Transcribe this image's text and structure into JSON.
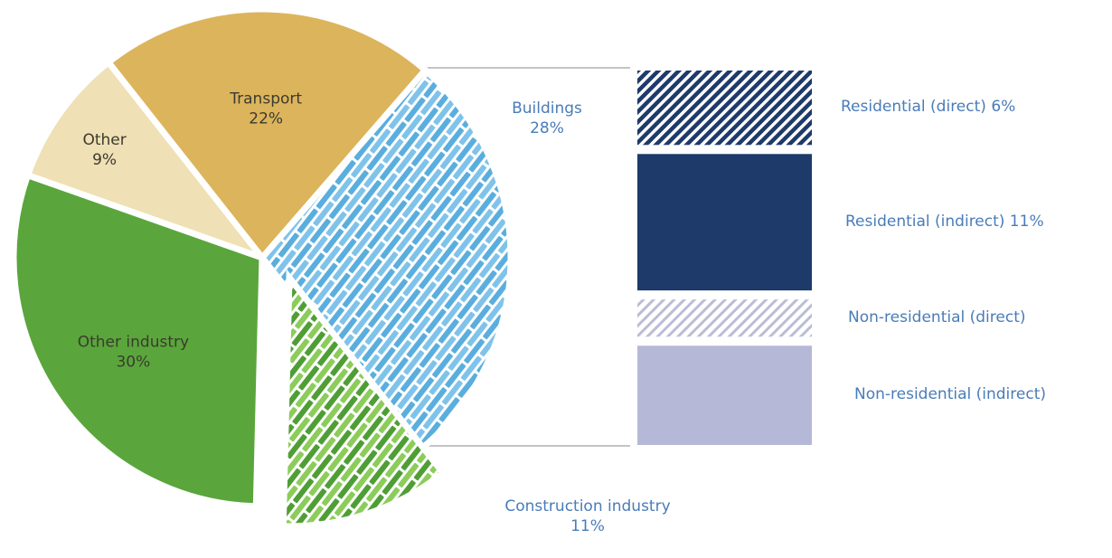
{
  "chart_data": {
    "type": "pie",
    "slices": [
      {
        "label": "Transport",
        "value": 22,
        "value_text": "22%",
        "color": "#dcb45c",
        "pattern": "solid"
      },
      {
        "label": "Buildings",
        "value": 28,
        "value_text": "28%",
        "color": "#5aaede",
        "pattern": "brick",
        "exploded": false
      },
      {
        "label": "Construction industry",
        "value": 11,
        "value_text": "11%",
        "color": "#6bb843",
        "pattern": "brick",
        "exploded": true
      },
      {
        "label": "Other industry",
        "value": 30,
        "value_text": "30%",
        "color": "#5aa63c",
        "pattern": "solid"
      },
      {
        "label": "Other",
        "value": 9,
        "value_text": "9%",
        "color": "#efe0b5",
        "pattern": "solid"
      }
    ],
    "breakdown": {
      "of": "Buildings",
      "items": [
        {
          "label": "Residential (direct) 6%",
          "value": 6,
          "color": "#1e3a6b",
          "pattern": "hatch"
        },
        {
          "label": "Residential (indirect) 11%",
          "value": 11,
          "color": "#1e3a6b",
          "pattern": "solid"
        },
        {
          "label": "Non-residential (direct)",
          "value": 3,
          "color": "#b9bed6",
          "pattern": "hatch"
        },
        {
          "label": "Non-residential (indirect)",
          "value": 8,
          "color": "#b5b8d6",
          "pattern": "solid"
        }
      ]
    },
    "legend": "none",
    "grid": false
  }
}
